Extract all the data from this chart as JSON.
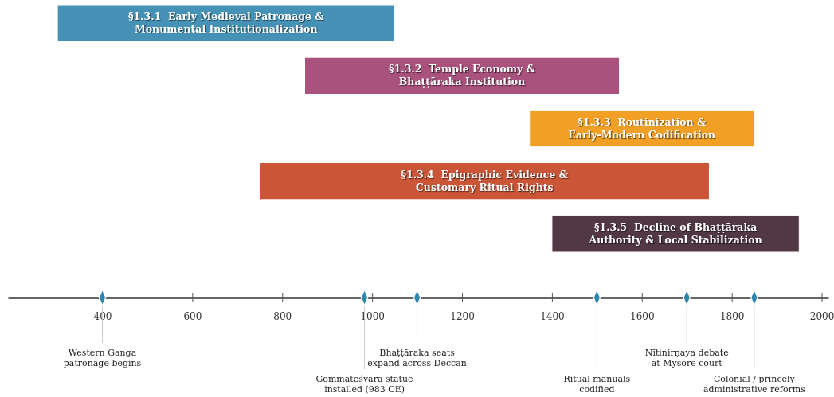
{
  "chart_data": {
    "type": "bar",
    "orientation": "horizontal",
    "categories": [
      "§1.3.1  Early Medieval Patronage &\nMonumental Institutionalization",
      "§1.3.2  Temple Economy &\nBhaṭṭāraka Institution",
      "§1.3.3  Routinization &\nEarly-Modern Codification",
      "§1.3.4  Epigraphic Evidence &\nCustomary Ritual Rights",
      "§1.3.5  Decline of Bhaṭṭāraka\nAuthority & Local Stabilization"
    ],
    "base": [
      300,
      850,
      1350,
      750,
      1400
    ],
    "values": [
      750,
      700,
      500,
      1000,
      550
    ],
    "colors": [
      "#4592b6",
      "#a9527d",
      "#f1a025",
      "#ca5637",
      "#523845"
    ],
    "xlim": [
      190,
      2015
    ],
    "xticks": [
      400,
      600,
      800,
      1000,
      1200,
      1400,
      1600,
      1800,
      2000
    ],
    "marker": "diamond",
    "grid": false,
    "ref_lines": [
      {
        "axis": "x",
        "value": 400,
        "label": "Western Ganga\npatronage begins",
        "color": "#cccccc"
      },
      {
        "axis": "x",
        "value": 983,
        "label": "Gommaṭeśvara statue\ninstalled (983 CE)",
        "color": "#cccccc"
      },
      {
        "axis": "x",
        "value": 1100,
        "label": "Bhaṭṭāraka seats\nexpand across Deccan",
        "color": "#cccccc"
      },
      {
        "axis": "x",
        "value": 1500,
        "label": "Ritual manuals\ncodified",
        "color": "#cccccc"
      },
      {
        "axis": "x",
        "value": 1700,
        "label": "Nītinirṇaya debate\nat Mysore court",
        "color": "#cccccc"
      },
      {
        "axis": "x",
        "value": 1850,
        "label": "Colonial / princely\nadministrative reforms",
        "color": "#cccccc"
      }
    ]
  }
}
